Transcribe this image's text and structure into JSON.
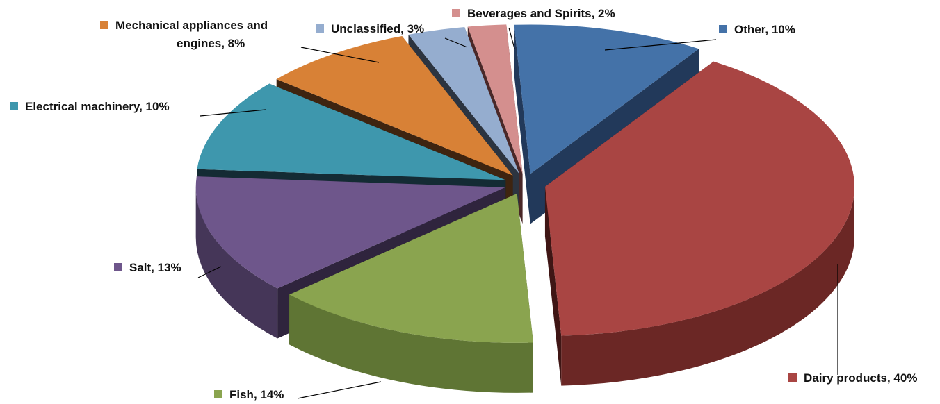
{
  "chart_data": {
    "type": "pie",
    "title": "",
    "three_d": true,
    "exploded": true,
    "legend": "inline labels with leader lines",
    "series": [
      {
        "category": "Other",
        "value": 10,
        "label": "Other, 10%",
        "color": "#4472a8",
        "side": "#2d4b6f",
        "deep": "#22395a"
      },
      {
        "category": "Dairy products",
        "value": 40,
        "label": "Dairy products, 40%",
        "color": "#a94543",
        "side": "#6b2725",
        "deep": "#3f1615"
      },
      {
        "category": "Fish",
        "value": 14,
        "label": "Fish, 14%",
        "color": "#8aa44f",
        "side": "#5f7534",
        "deep": "#3e4f20"
      },
      {
        "category": "Salt",
        "value": 13,
        "label": "Salt, 13%",
        "color": "#6e568b",
        "side": "#453658",
        "deep": "#2f243d"
      },
      {
        "category": "Electrical machinery",
        "value": 10,
        "label": "Electrical machinery, 10%",
        "color": "#3e97ad",
        "side": "#1c3c48",
        "deep": "#142b34"
      },
      {
        "category": "Mechanical appliances and engines",
        "value": 8,
        "label": "Mechanical appliances and engines, 8%",
        "label_lines": [
          "Mechanical appliances and",
          "engines, 8%"
        ],
        "color": "#d88136",
        "side": "#5a3418",
        "deep": "#3e2410"
      },
      {
        "category": "Unclassified",
        "value": 3,
        "label": "Unclassified, 3%",
        "color": "#95adcf",
        "side": "#3c4656",
        "deep": "#2c3440"
      },
      {
        "category": "Beverages and Spirits",
        "value": 2,
        "label": "Beverages and Spirits, 2%",
        "color": "#d48f8e",
        "side": "#6b3d3c",
        "deep": "#4a2828"
      }
    ]
  }
}
